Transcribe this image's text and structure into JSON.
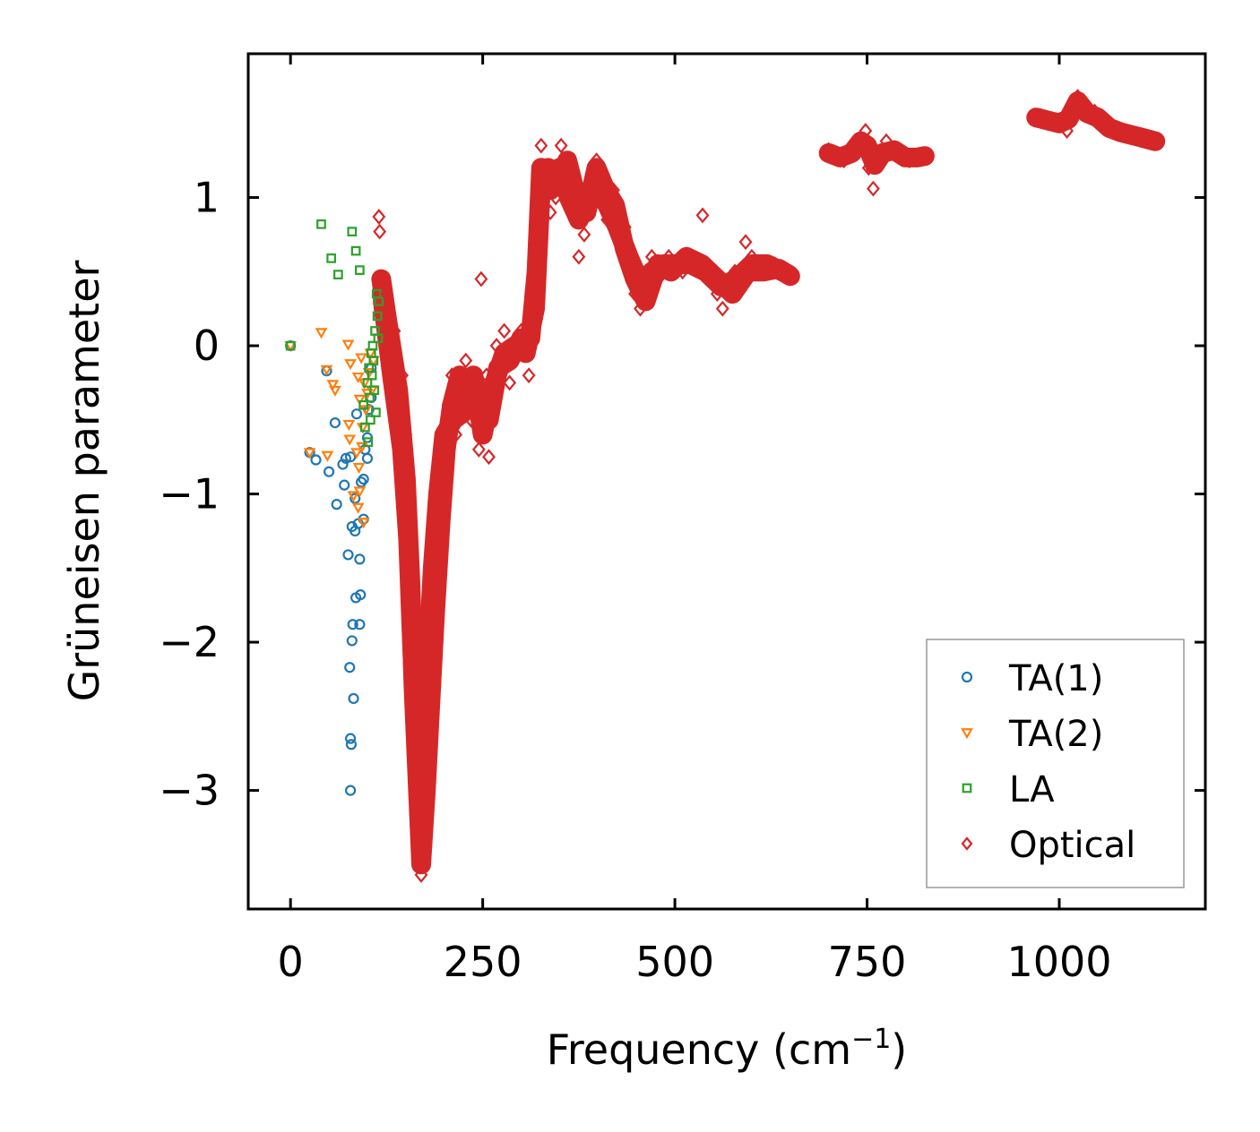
{
  "chart_data": {
    "type": "scatter",
    "title": "",
    "xlabel": "Frequency (cm",
    "xlabel_superscript": "−1",
    "xlabel_suffix": ")",
    "ylabel": "Grüneisen parameter",
    "xlim": [
      -55,
      1190
    ],
    "ylim": [
      -3.8,
      1.97
    ],
    "xticks": [
      0,
      250,
      500,
      750,
      1000
    ],
    "xtick_labels": [
      "0",
      "250",
      "500",
      "750",
      "1000"
    ],
    "yticks": [
      1,
      0,
      -1,
      -2,
      -3
    ],
    "ytick_labels": [
      "1",
      "0",
      "−1",
      "−2",
      "−3"
    ],
    "grid": false,
    "legend_position": "lower-right",
    "series": [
      {
        "name": "TA(1)",
        "marker": "circle",
        "color": "#1f77b4",
        "points": [
          [
            0,
            0
          ],
          [
            25,
            -0.72
          ],
          [
            33,
            -0.77
          ],
          [
            47,
            -0.17
          ],
          [
            50,
            -0.85
          ],
          [
            58,
            -0.52
          ],
          [
            60,
            -1.07
          ],
          [
            68,
            -0.8
          ],
          [
            70,
            -0.94
          ],
          [
            72,
            -0.76
          ],
          [
            75,
            -1.41
          ],
          [
            77,
            -2.17
          ],
          [
            78,
            -2.65
          ],
          [
            78,
            -0.75
          ],
          [
            78,
            -3.0
          ],
          [
            79,
            -2.69
          ],
          [
            80,
            -1.22
          ],
          [
            80,
            -1.99
          ],
          [
            81,
            -1.88
          ],
          [
            82,
            -2.38
          ],
          [
            84,
            -1.25
          ],
          [
            84,
            -1.03
          ],
          [
            85,
            -1.7
          ],
          [
            86,
            -0.46
          ],
          [
            88,
            -1.2
          ],
          [
            90,
            -1.88
          ],
          [
            90,
            -1.44
          ],
          [
            91,
            -1.68
          ],
          [
            92,
            -0.92
          ],
          [
            95,
            -0.9
          ],
          [
            95,
            -1.17
          ],
          [
            97,
            -0.7
          ],
          [
            100,
            -0.62
          ],
          [
            100,
            -0.76
          ],
          [
            102,
            -0.43
          ],
          [
            105,
            -0.15
          ],
          [
            105,
            -0.35
          ]
        ]
      },
      {
        "name": "TA(2)",
        "marker": "triangle-down",
        "color": "#ff7f0e",
        "points": [
          [
            0,
            0
          ],
          [
            25,
            -0.72
          ],
          [
            40,
            0.09
          ],
          [
            47,
            -0.16
          ],
          [
            48,
            -0.74
          ],
          [
            55,
            -0.26
          ],
          [
            58,
            -0.3
          ],
          [
            75,
            0.01
          ],
          [
            76,
            -0.53
          ],
          [
            77,
            -0.63
          ],
          [
            78,
            -0.12
          ],
          [
            82,
            -1.01
          ],
          [
            86,
            -0.72
          ],
          [
            88,
            -0.21
          ],
          [
            88,
            -1.09
          ],
          [
            89,
            -0.82
          ],
          [
            90,
            -0.36
          ],
          [
            90,
            -0.98
          ],
          [
            92,
            -0.08
          ],
          [
            93,
            -0.68
          ],
          [
            94,
            -0.55
          ],
          [
            95,
            -1.19
          ],
          [
            96,
            -0.25
          ],
          [
            98,
            -0.43
          ],
          [
            100,
            -0.32
          ],
          [
            102,
            -0.18
          ],
          [
            104,
            -0.05
          ],
          [
            106,
            -0.3
          ],
          [
            108,
            -0.1
          ]
        ]
      },
      {
        "name": "LA",
        "marker": "square",
        "color": "#2ca02c",
        "points": [
          [
            0,
            0
          ],
          [
            40,
            0.82
          ],
          [
            53,
            0.59
          ],
          [
            62,
            0.48
          ],
          [
            80,
            0.77
          ],
          [
            85,
            0.64
          ],
          [
            90,
            0.51
          ],
          [
            95,
            -0.4
          ],
          [
            97,
            -0.55
          ],
          [
            100,
            -0.25
          ],
          [
            101,
            -0.65
          ],
          [
            102,
            -0.15
          ],
          [
            103,
            -0.35
          ],
          [
            104,
            -0.5
          ],
          [
            105,
            -0.05
          ],
          [
            106,
            -0.2
          ],
          [
            107,
            0.0
          ],
          [
            108,
            -0.1
          ],
          [
            109,
            -0.3
          ],
          [
            110,
            0.1
          ],
          [
            111,
            -0.45
          ],
          [
            112,
            0.35
          ],
          [
            113,
            0.2
          ],
          [
            114,
            0.05
          ],
          [
            115,
            0.3
          ]
        ]
      },
      {
        "name": "Optical",
        "marker": "diamond",
        "color": "#d62728",
        "points": [
          [
            115,
            0.87
          ],
          [
            116,
            0.77
          ],
          [
            118,
            0.45
          ],
          [
            125,
            0.35
          ],
          [
            135,
            0.1
          ],
          [
            145,
            -0.2
          ],
          [
            150,
            -0.6
          ],
          [
            155,
            -1.0
          ],
          [
            158,
            -1.5
          ],
          [
            160,
            -2.0
          ],
          [
            163,
            -2.5
          ],
          [
            166,
            -3.0
          ],
          [
            168,
            -3.35
          ],
          [
            170,
            -3.57
          ],
          [
            172,
            -3.2
          ],
          [
            175,
            -2.8
          ],
          [
            178,
            -2.4
          ],
          [
            182,
            -2.0
          ],
          [
            186,
            -1.6
          ],
          [
            190,
            -1.3
          ],
          [
            195,
            -0.9
          ],
          [
            200,
            -0.55
          ],
          [
            205,
            -0.4
          ],
          [
            210,
            -0.2
          ],
          [
            215,
            -0.6
          ],
          [
            220,
            -0.3
          ],
          [
            228,
            -0.1
          ],
          [
            235,
            -0.5
          ],
          [
            240,
            -0.3
          ],
          [
            245,
            -0.7
          ],
          [
            248,
            0.45
          ],
          [
            252,
            -0.55
          ],
          [
            255,
            -0.2
          ],
          [
            258,
            -0.75
          ],
          [
            262,
            -0.3
          ],
          [
            268,
            0.0
          ],
          [
            272,
            -0.2
          ],
          [
            278,
            0.1
          ],
          [
            285,
            -0.25
          ],
          [
            292,
            -0.05
          ],
          [
            300,
            0.1
          ],
          [
            305,
            0.05
          ],
          [
            310,
            -0.2
          ],
          [
            318,
            0.3
          ],
          [
            322,
            0.8
          ],
          [
            326,
            1.35
          ],
          [
            330,
            1.2
          ],
          [
            338,
            0.9
          ],
          [
            345,
            1.0
          ],
          [
            352,
            1.35
          ],
          [
            360,
            1.1
          ],
          [
            368,
            0.95
          ],
          [
            375,
            0.6
          ],
          [
            382,
            0.75
          ],
          [
            390,
            1.1
          ],
          [
            398,
            1.25
          ],
          [
            405,
            1.0
          ],
          [
            412,
            0.85
          ],
          [
            420,
            1.05
          ],
          [
            428,
            0.7
          ],
          [
            435,
            0.8
          ],
          [
            440,
            0.5
          ],
          [
            448,
            0.35
          ],
          [
            455,
            0.25
          ],
          [
            462,
            0.4
          ],
          [
            470,
            0.6
          ],
          [
            478,
            0.45
          ],
          [
            485,
            0.5
          ],
          [
            492,
            0.6
          ],
          [
            500,
            0.55
          ],
          [
            510,
            0.5
          ],
          [
            520,
            0.6
          ],
          [
            530,
            0.58
          ],
          [
            536,
            0.88
          ],
          [
            540,
            0.5
          ],
          [
            548,
            0.45
          ],
          [
            555,
            0.35
          ],
          [
            562,
            0.25
          ],
          [
            570,
            0.4
          ],
          [
            578,
            0.5
          ],
          [
            585,
            0.45
          ],
          [
            592,
            0.7
          ],
          [
            600,
            0.6
          ],
          [
            610,
            0.55
          ],
          [
            620,
            0.5
          ],
          [
            630,
            0.55
          ],
          [
            640,
            0.5
          ],
          [
            650,
            0.47
          ],
          [
            700,
            1.32
          ],
          [
            710,
            1.28
          ],
          [
            720,
            1.25
          ],
          [
            730,
            1.3
          ],
          [
            740,
            1.35
          ],
          [
            748,
            1.45
          ],
          [
            752,
            1.2
          ],
          [
            758,
            1.06
          ],
          [
            765,
            1.3
          ],
          [
            775,
            1.38
          ],
          [
            785,
            1.3
          ],
          [
            795,
            1.28
          ],
          [
            805,
            1.25
          ],
          [
            815,
            1.27
          ],
          [
            825,
            1.28
          ],
          [
            970,
            1.55
          ],
          [
            980,
            1.52
          ],
          [
            990,
            1.5
          ],
          [
            1000,
            1.52
          ],
          [
            1010,
            1.45
          ],
          [
            1018,
            1.6
          ],
          [
            1024,
            1.68
          ],
          [
            1030,
            1.62
          ],
          [
            1038,
            1.55
          ],
          [
            1046,
            1.58
          ],
          [
            1055,
            1.52
          ],
          [
            1065,
            1.47
          ],
          [
            1075,
            1.45
          ],
          [
            1085,
            1.43
          ],
          [
            1095,
            1.41
          ],
          [
            1105,
            1.4
          ],
          [
            1115,
            1.39
          ],
          [
            1125,
            1.38
          ]
        ]
      }
    ],
    "optical_bands": [
      [
        [
          118,
          0.45
        ],
        [
          125,
          0.2
        ],
        [
          140,
          -0.3
        ],
        [
          150,
          -0.9
        ],
        [
          156,
          -1.6
        ],
        [
          160,
          -2.3
        ],
        [
          165,
          -2.9
        ],
        [
          170,
          -3.5
        ],
        [
          176,
          -3.0
        ],
        [
          182,
          -2.4
        ],
        [
          188,
          -1.8
        ],
        [
          195,
          -1.2
        ],
        [
          202,
          -0.7
        ],
        [
          210,
          -0.4
        ],
        [
          220,
          -0.2
        ],
        [
          232,
          -0.3
        ],
        [
          245,
          -0.35
        ],
        [
          258,
          -0.5
        ],
        [
          270,
          -0.15
        ],
        [
          285,
          -0.1
        ],
        [
          300,
          0.05
        ],
        [
          312,
          0.05
        ],
        [
          320,
          0.5
        ],
        [
          326,
          1.2
        ],
        [
          338,
          1.05
        ],
        [
          350,
          1.2
        ],
        [
          362,
          1.0
        ],
        [
          375,
          0.85
        ],
        [
          388,
          1.0
        ],
        [
          400,
          1.05
        ],
        [
          412,
          0.95
        ],
        [
          425,
          0.8
        ],
        [
          440,
          0.6
        ],
        [
          455,
          0.42
        ],
        [
          470,
          0.5
        ],
        [
          485,
          0.55
        ],
        [
          500,
          0.55
        ],
        [
          520,
          0.55
        ],
        [
          540,
          0.5
        ],
        [
          560,
          0.4
        ],
        [
          580,
          0.45
        ],
        [
          600,
          0.55
        ],
        [
          620,
          0.55
        ],
        [
          640,
          0.5
        ],
        [
          650,
          0.47
        ]
      ],
      [
        [
          120,
          0.3
        ],
        [
          132,
          -0.2
        ],
        [
          145,
          -0.7
        ],
        [
          153,
          -1.3
        ],
        [
          158,
          -2.0
        ],
        [
          163,
          -2.6
        ],
        [
          168,
          -3.2
        ],
        [
          173,
          -2.8
        ],
        [
          179,
          -2.1
        ],
        [
          185,
          -1.5
        ],
        [
          192,
          -1.0
        ],
        [
          200,
          -0.6
        ],
        [
          212,
          -0.5
        ],
        [
          225,
          -0.45
        ],
        [
          238,
          -0.2
        ],
        [
          250,
          -0.6
        ],
        [
          262,
          -0.3
        ],
        [
          278,
          -0.05
        ],
        [
          292,
          0.0
        ],
        [
          306,
          -0.05
        ],
        [
          318,
          0.25
        ],
        [
          325,
          1.0
        ],
        [
          335,
          1.2
        ],
        [
          348,
          1.1
        ],
        [
          360,
          1.25
        ],
        [
          372,
          1.0
        ],
        [
          385,
          0.9
        ],
        [
          398,
          1.2
        ],
        [
          410,
          1.05
        ],
        [
          422,
          0.95
        ],
        [
          435,
          0.65
        ],
        [
          448,
          0.45
        ],
        [
          462,
          0.3
        ],
        [
          478,
          0.55
        ],
        [
          495,
          0.5
        ],
        [
          515,
          0.6
        ],
        [
          535,
          0.55
        ],
        [
          555,
          0.45
        ],
        [
          575,
          0.35
        ],
        [
          595,
          0.5
        ],
        [
          615,
          0.5
        ],
        [
          635,
          0.52
        ],
        [
          648,
          0.48
        ]
      ],
      [
        [
          700,
          1.3
        ],
        [
          715,
          1.27
        ],
        [
          730,
          1.3
        ],
        [
          742,
          1.38
        ],
        [
          750,
          1.35
        ],
        [
          760,
          1.22
        ],
        [
          770,
          1.3
        ],
        [
          785,
          1.32
        ],
        [
          800,
          1.27
        ],
        [
          815,
          1.27
        ],
        [
          825,
          1.28
        ]
      ],
      [
        [
          970,
          1.54
        ],
        [
          985,
          1.52
        ],
        [
          1000,
          1.5
        ],
        [
          1012,
          1.53
        ],
        [
          1024,
          1.65
        ],
        [
          1036,
          1.57
        ],
        [
          1050,
          1.54
        ],
        [
          1065,
          1.47
        ],
        [
          1080,
          1.44
        ],
        [
          1095,
          1.42
        ],
        [
          1110,
          1.4
        ],
        [
          1125,
          1.38
        ]
      ]
    ]
  }
}
